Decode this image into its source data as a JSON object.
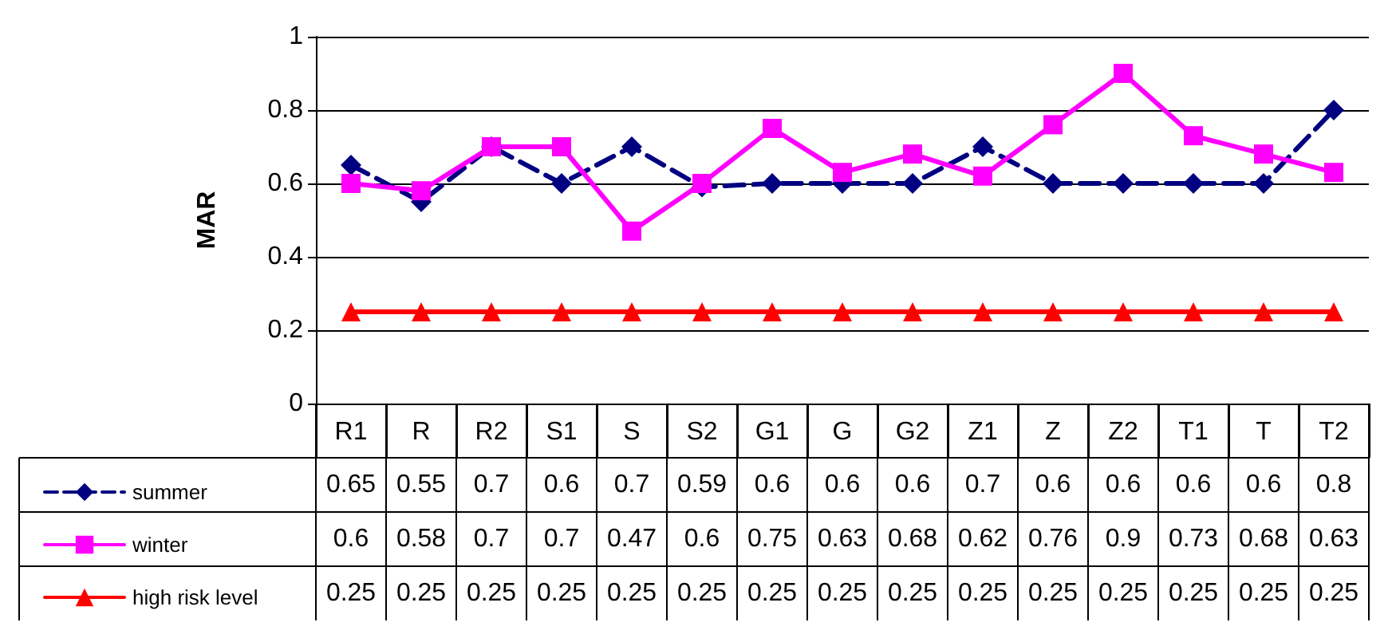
{
  "chart_data": {
    "type": "line",
    "ylabel": "MAR",
    "categories": [
      "R1",
      "R",
      "R2",
      "S1",
      "S",
      "S2",
      "G1",
      "G",
      "G2",
      "Z1",
      "Z",
      "Z2",
      "T1",
      "T",
      "T2"
    ],
    "series": [
      {
        "name": "summer",
        "color": "#000080",
        "marker": "diamond",
        "line_style": "dashed",
        "values": [
          0.65,
          0.55,
          0.7,
          0.6,
          0.7,
          0.59,
          0.6,
          0.6,
          0.6,
          0.7,
          0.6,
          0.6,
          0.6,
          0.6,
          0.8
        ]
      },
      {
        "name": "winter",
        "color": "#ff00ff",
        "marker": "square",
        "line_style": "solid",
        "values": [
          0.6,
          0.58,
          0.7,
          0.7,
          0.47,
          0.6,
          0.75,
          0.63,
          0.68,
          0.62,
          0.76,
          0.9,
          0.73,
          0.68,
          0.63
        ]
      },
      {
        "name": "high risk level",
        "color": "#ff0000",
        "marker": "triangle",
        "line_style": "solid",
        "values": [
          0.25,
          0.25,
          0.25,
          0.25,
          0.25,
          0.25,
          0.25,
          0.25,
          0.25,
          0.25,
          0.25,
          0.25,
          0.25,
          0.25,
          0.25
        ]
      }
    ],
    "ylim": [
      0,
      1
    ],
    "yticks": [
      0,
      0.2,
      0.4,
      0.6,
      0.8,
      1
    ],
    "grid": "y",
    "legend": "bottom left",
    "data_labels": true
  }
}
